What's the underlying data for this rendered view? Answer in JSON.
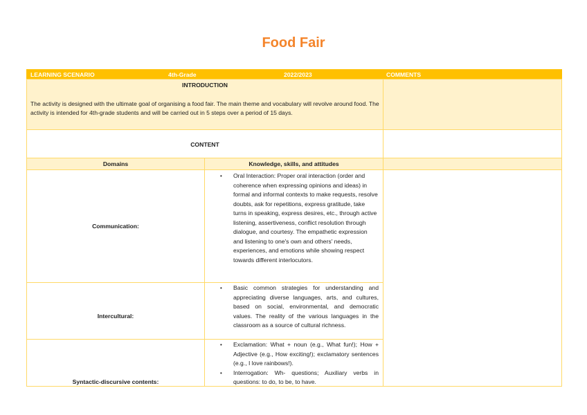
{
  "title": "Food Fair",
  "header": {
    "scenario": "LEARNING SCENARIO",
    "grade": "4th-Grade",
    "year": "2022/2023",
    "comments": "COMMENTS"
  },
  "introduction": {
    "heading": "INTRODUCTION",
    "text": "The activity is designed with the ultimate goal of organising a food fair. The main theme and vocabulary will revolve around food. The activity is intended for 4th-grade students and will be carried out in 5 steps over a period of 15 days."
  },
  "content": {
    "heading": "CONTENT",
    "col_domains": "Domains",
    "col_knowledge": "Knowledge, skills, and attitudes"
  },
  "rows": [
    {
      "domain": "Communication:",
      "items": [
        "Oral Interaction: Proper oral interaction (order and coherence when expressing opinions and ideas) in formal and informal contexts to make requests, resolve doubts, ask for repetitions, express gratitude, take turns in speaking, express desires, etc., through active listening, assertiveness, conflict resolution through dialogue, and courtesy. The empathetic expression and listening to one's own and others' needs, experiences, and emotions while showing respect towards different interlocutors."
      ]
    },
    {
      "domain": "Intercultural:",
      "items": [
        "Basic common strategies for understanding and appreciating diverse languages, arts, and cultures, based on social, environmental, and democratic values. The reality of the various languages in the classroom as a source of cultural richness."
      ]
    },
    {
      "domain": "Syntactic-discursive contents:",
      "items": [
        "Exclamation: What + noun (e.g., What fun!); How + Adjective (e.g., How exciting!); exclamatory sentences (e.g., I love rainbows!).",
        "Interrogation: Wh- questions; Auxiliary verbs in questions: to do, to be, to have."
      ]
    }
  ],
  "colors": {
    "header": "#FFC000",
    "light": "#FFF2CC",
    "border": "#FFD966",
    "title": "#F4842A"
  }
}
